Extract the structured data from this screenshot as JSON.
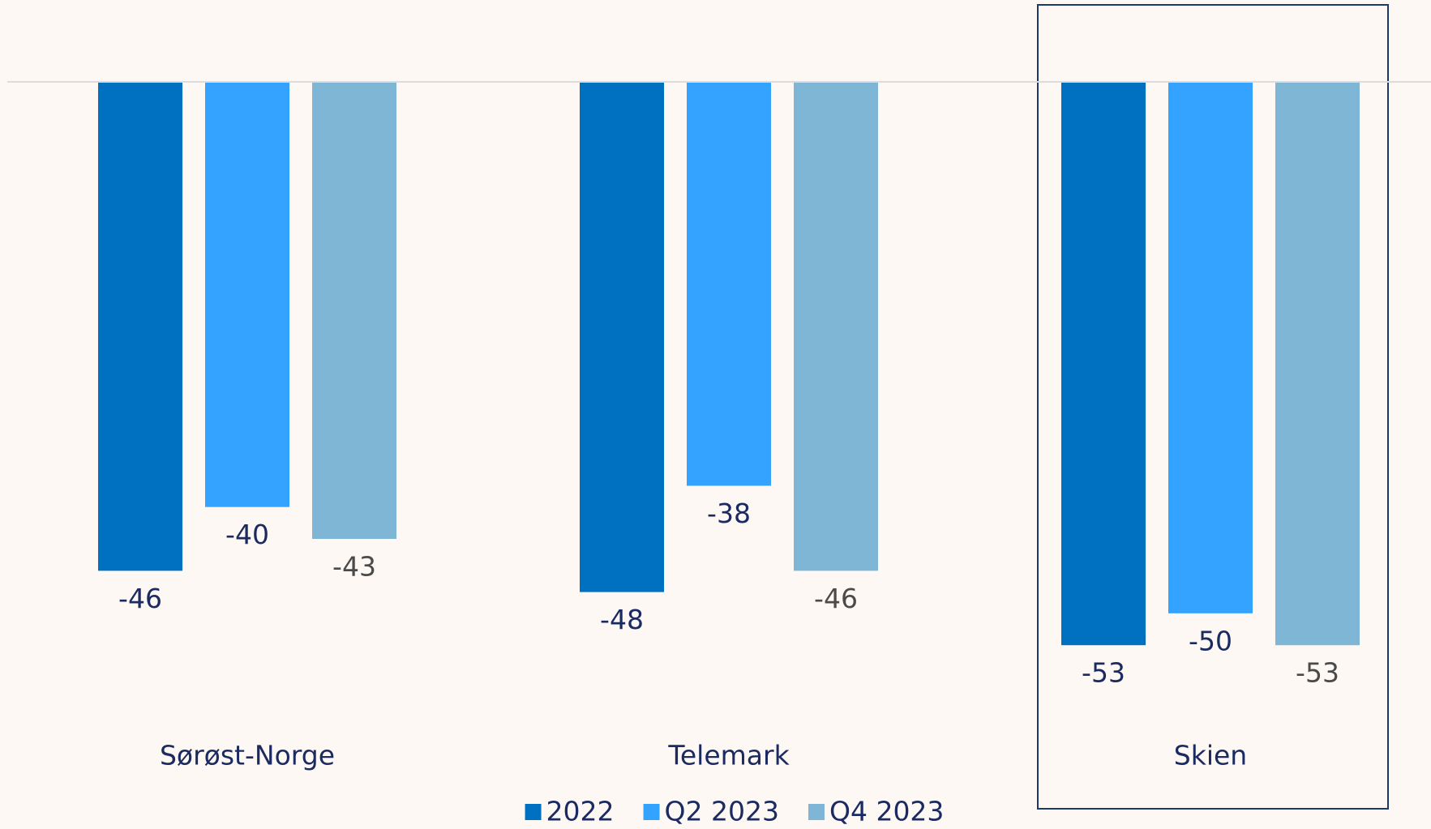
{
  "chart_data": {
    "type": "bar",
    "categories": [
      "Sørøst-Norge",
      "Telemark",
      "Skien"
    ],
    "series": [
      {
        "name": "2022",
        "color": "#0070c0",
        "values": [
          -46,
          -48,
          -53
        ]
      },
      {
        "name": "Q2 2023",
        "color": "#33a3ff",
        "values": [
          -40,
          -38,
          -50
        ]
      },
      {
        "name": "Q4 2023",
        "color": "#7fb5d5",
        "values": [
          -43,
          -46,
          -53
        ]
      }
    ],
    "ylim": [
      -60,
      0
    ],
    "legend": "bottom"
  }
}
